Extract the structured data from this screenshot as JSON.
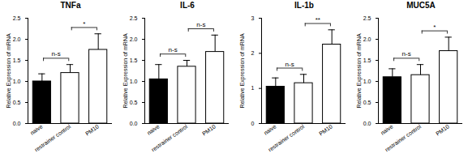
{
  "chart_data": [
    {
      "type": "bar",
      "title": "TNFa",
      "y_label": "Relative Expression of mRNA",
      "categories": [
        "naive",
        "restrainer control",
        "PM10"
      ],
      "values": [
        1.0,
        1.2,
        1.75
      ],
      "errors": [
        0.18,
        0.2,
        0.38
      ],
      "colors": [
        "#000000",
        "#ffffff",
        "#ffffff"
      ],
      "ylim": [
        0,
        2.5
      ],
      "yticks": [
        {
          "value": 0,
          "label": "0.0"
        },
        {
          "value": 0.5,
          "label": "0.5"
        },
        {
          "value": 1,
          "label": "1.0"
        },
        {
          "value": 1.5,
          "label": "1.5"
        },
        {
          "value": 2,
          "label": "2.0"
        },
        {
          "value": 2.5,
          "label": "2.5"
        }
      ],
      "comparisons": [
        {
          "pair": [
            "naive",
            "restrainer control"
          ],
          "label": "n-s"
        },
        {
          "pair": [
            "restrainer control",
            "PM10"
          ],
          "label": "*"
        }
      ]
    },
    {
      "type": "bar",
      "title": "IL-6",
      "y_label": "Relative Expression of mRNA",
      "categories": [
        "naive",
        "restrainer control",
        "PM10"
      ],
      "values": [
        1.05,
        1.35,
        1.7
      ],
      "errors": [
        0.35,
        0.15,
        0.4
      ],
      "colors": [
        "#000000",
        "#ffffff",
        "#ffffff"
      ],
      "ylim": [
        0,
        2.5
      ],
      "yticks": [
        {
          "value": 0,
          "label": "0.0"
        },
        {
          "value": 0.5,
          "label": "0.5"
        },
        {
          "value": 1,
          "label": "1.0"
        },
        {
          "value": 1.5,
          "label": "1.5"
        },
        {
          "value": 2,
          "label": "2.0"
        },
        {
          "value": 2.5,
          "label": "2.5"
        }
      ],
      "comparisons": [
        {
          "pair": [
            "naive",
            "restrainer control"
          ],
          "label": "n-s"
        },
        {
          "pair": [
            "restrainer control",
            "PM10"
          ],
          "label": "n-s"
        }
      ]
    },
    {
      "type": "bar",
      "title": "IL-1b",
      "y_label": "Relative Expression of mRNA",
      "categories": [
        "naive",
        "restrainer control",
        "PM10"
      ],
      "values": [
        1.05,
        1.15,
        2.25
      ],
      "errors": [
        0.25,
        0.25,
        0.42
      ],
      "colors": [
        "#000000",
        "#ffffff",
        "#ffffff"
      ],
      "ylim": [
        0,
        3
      ],
      "yticks": [
        0,
        1,
        2,
        3
      ],
      "comparisons": [
        {
          "pair": [
            "naive",
            "restrainer control"
          ],
          "label": "n-s"
        },
        {
          "pair": [
            "restrainer control",
            "PM10"
          ],
          "label": "**"
        }
      ]
    },
    {
      "type": "bar",
      "title": "MUC5A",
      "y_label": "Relative Expression of mRNA",
      "categories": [
        "naive",
        "restrainer control",
        "PM10"
      ],
      "values": [
        1.1,
        1.15,
        1.72
      ],
      "errors": [
        0.2,
        0.25,
        0.33
      ],
      "colors": [
        "#000000",
        "#ffffff",
        "#ffffff"
      ],
      "ylim": [
        0,
        2.5
      ],
      "yticks": [
        {
          "value": 0,
          "label": "0.0"
        },
        {
          "value": 0.5,
          "label": "0.5"
        },
        {
          "value": 1,
          "label": "1.0"
        },
        {
          "value": 1.5,
          "label": "1.5"
        },
        {
          "value": 2,
          "label": "2.0"
        },
        {
          "value": 2.5,
          "label": "2.5"
        }
      ],
      "comparisons": [
        {
          "pair": [
            "naive",
            "restrainer control"
          ],
          "label": "n-s"
        },
        {
          "pair": [
            "restrainer control",
            "PM10"
          ],
          "label": "*"
        }
      ]
    }
  ]
}
